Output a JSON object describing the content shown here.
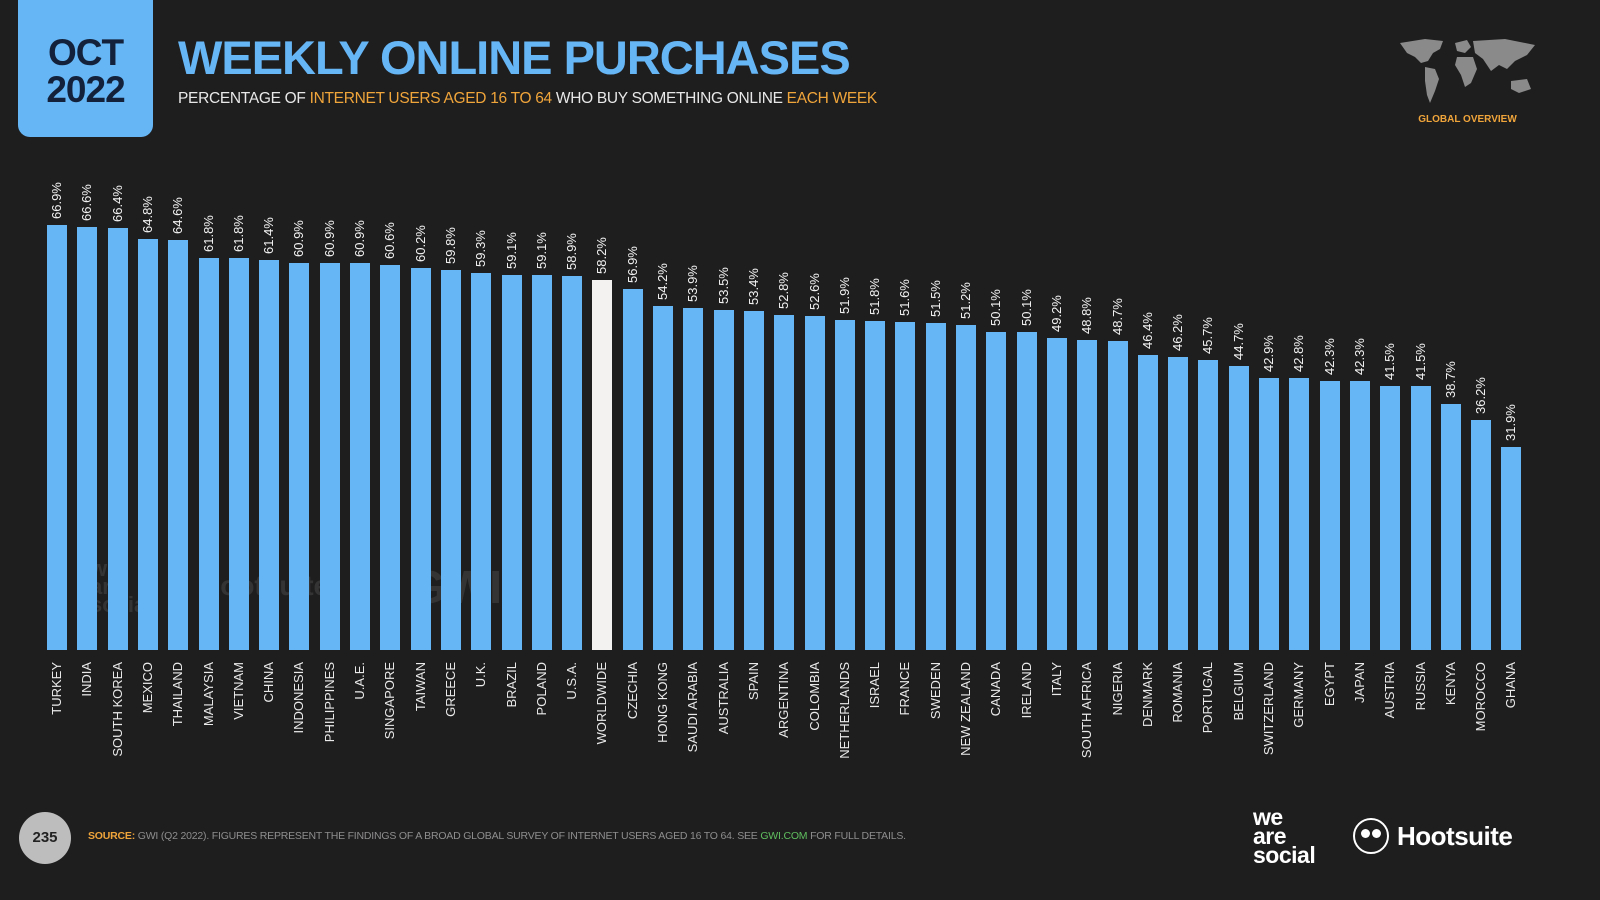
{
  "header": {
    "date_month": "OCT",
    "date_year": "2022",
    "title": "WEEKLY ONLINE PURCHASES",
    "subtitle_parts": [
      "PERCENTAGE OF ",
      "INTERNET USERS AGED 16 TO 64",
      " WHO BUY SOMETHING ONLINE ",
      "EACH WEEK"
    ],
    "section_label": "GLOBAL OVERVIEW"
  },
  "colors": {
    "bar": "#66b5f5",
    "highlight_bar": "#f4f1f1",
    "background": "#1f1e1f",
    "accent": "#f0a53a"
  },
  "watermarks": [
    "we are social",
    "Hootsuite",
    "GWI."
  ],
  "footer": {
    "page_number": "235",
    "source_label": "SOURCE:",
    "source_text": " GWI (Q2 2022). FIGURES REPRESENT THE FINDINGS OF A BROAD GLOBAL SURVEY OF INTERNET USERS AGED 16 TO 64. SEE ",
    "source_link": "GWI.COM",
    "source_tail": " FOR FULL DETAILS.",
    "logo_was": [
      "we",
      "are",
      "social"
    ],
    "logo_hootsuite": "Hootsuite"
  },
  "chart_data": {
    "type": "bar",
    "title": "WEEKLY ONLINE PURCHASES",
    "subtitle": "PERCENTAGE OF INTERNET USERS AGED 16 TO 64 WHO BUY SOMETHING ONLINE EACH WEEK",
    "xlabel": "",
    "ylabel": "",
    "ylim": [
      0,
      70
    ],
    "grid": false,
    "highlight": "WORLDWIDE",
    "categories": [
      "TURKEY",
      "INDIA",
      "SOUTH KOREA",
      "MEXICO",
      "THAILAND",
      "MALAYSIA",
      "VIETNAM",
      "CHINA",
      "INDONESIA",
      "PHILIPPINES",
      "U.A.E.",
      "SINGAPORE",
      "TAIWAN",
      "GREECE",
      "U.K.",
      "BRAZIL",
      "POLAND",
      "U.S.A.",
      "WORLDWIDE",
      "CZECHIA",
      "HONG KONG",
      "SAUDI ARABIA",
      "AUSTRALIA",
      "SPAIN",
      "ARGENTINA",
      "COLOMBIA",
      "NETHERLANDS",
      "ISRAEL",
      "FRANCE",
      "SWEDEN",
      "NEW ZEALAND",
      "CANADA",
      "IRELAND",
      "ITALY",
      "SOUTH AFRICA",
      "NIGERIA",
      "DENMARK",
      "ROMANIA",
      "PORTUGAL",
      "BELGIUM",
      "SWITZERLAND",
      "GERMANY",
      "EGYPT",
      "JAPAN",
      "AUSTRIA",
      "RUSSIA",
      "KENYA",
      "MOROCCO",
      "GHANA"
    ],
    "values": [
      66.9,
      66.6,
      66.4,
      64.8,
      64.6,
      61.8,
      61.8,
      61.4,
      60.9,
      60.9,
      60.9,
      60.6,
      60.2,
      59.8,
      59.3,
      59.1,
      59.1,
      58.9,
      58.2,
      56.9,
      54.2,
      53.9,
      53.5,
      53.4,
      52.8,
      52.6,
      51.9,
      51.8,
      51.6,
      51.5,
      51.2,
      50.1,
      50.1,
      49.2,
      48.8,
      48.7,
      46.4,
      46.2,
      45.7,
      44.7,
      42.9,
      42.8,
      42.3,
      42.3,
      41.5,
      41.5,
      38.7,
      36.2,
      31.9
    ],
    "labels": [
      "66.9%",
      "66.6%",
      "66.4%",
      "64.8%",
      "64.6%",
      "61.8%",
      "61.8%",
      "61.4%",
      "60.9%",
      "60.9%",
      "60.9%",
      "60.6%",
      "60.2%",
      "59.8%",
      "59.3%",
      "59.1%",
      "59.1%",
      "58.9%",
      "58.2%",
      "56.9%",
      "54.2%",
      "53.9%",
      "53.5%",
      "53.4%",
      "52.8%",
      "52.6%",
      "51.9%",
      "51.8%",
      "51.6%",
      "51.5%",
      "51.2%",
      "50.1%",
      "50.1%",
      "49.2%",
      "48.8%",
      "48.7%",
      "46.4%",
      "46.2%",
      "45.7%",
      "44.7%",
      "42.9%",
      "42.8%",
      "42.3%",
      "42.3%",
      "41.5%",
      "41.5%",
      "38.7%",
      "36.2%",
      "31.9%"
    ]
  }
}
